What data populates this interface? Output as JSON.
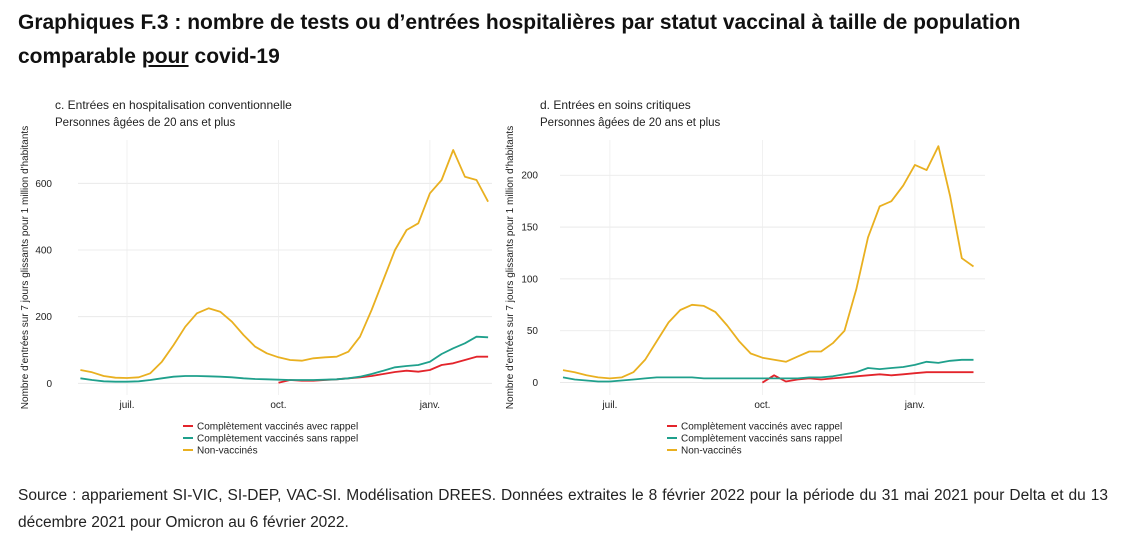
{
  "header": {
    "title_start": "Graphiques F.3 : nombre de tests ou d’entrées hospitalières par statut vaccinal à taille de population comparable",
    "title_underlined": "pour",
    "title_end": "covid-19"
  },
  "chart_data": [
    {
      "type": "line",
      "title": "c. Entrées en hospitalisation conventionnelle",
      "subtitle": "Personnes âgées de 20 ans et plus",
      "y_label": "Nombre d'entrées sur 7 jours glissants pour 1 million d'habitants",
      "categories": [
        null,
        null,
        null,
        null,
        "juil.",
        null,
        null,
        null,
        null,
        null,
        null,
        null,
        null,
        null,
        null,
        null,
        null,
        "oct.",
        null,
        null,
        null,
        null,
        null,
        null,
        null,
        null,
        null,
        null,
        null,
        null,
        "janv.",
        null,
        null,
        null,
        null,
        null
      ],
      "series": [
        {
          "name": "Complètement vaccinés avec rappel",
          "color": "#e3242b",
          "values": [
            null,
            null,
            null,
            null,
            null,
            null,
            null,
            null,
            null,
            null,
            null,
            null,
            null,
            null,
            null,
            null,
            null,
            2,
            10,
            8,
            8,
            10,
            12,
            15,
            18,
            22,
            28,
            34,
            38,
            35,
            40,
            55,
            60,
            70,
            80,
            80
          ]
        },
        {
          "name": "Complètement vaccinés sans rappel",
          "color": "#1fa08c",
          "values": [
            15,
            10,
            6,
            5,
            5,
            6,
            10,
            15,
            20,
            22,
            22,
            21,
            20,
            18,
            15,
            13,
            12,
            11,
            10,
            10,
            10,
            11,
            12,
            15,
            20,
            28,
            38,
            48,
            52,
            55,
            65,
            88,
            105,
            120,
            140,
            138
          ]
        },
        {
          "name": "Non-vaccinés",
          "color": "#e9b020",
          "values": [
            40,
            33,
            22,
            17,
            16,
            18,
            30,
            65,
            115,
            170,
            210,
            225,
            215,
            185,
            145,
            110,
            90,
            78,
            70,
            68,
            75,
            78,
            80,
            95,
            140,
            220,
            310,
            400,
            460,
            480,
            570,
            610,
            700,
            620,
            610,
            545
          ]
        }
      ],
      "ylim": [
        -35,
        730
      ],
      "yticks": [
        0,
        200,
        400,
        600
      ],
      "grid": true
    },
    {
      "type": "line",
      "title": "d. Entrées en soins critiques",
      "subtitle": "Personnes âgées de 20 ans et plus",
      "y_label": "Nombre d'entrées sur 7 jours glissants pour 1 million d'habitants",
      "categories": [
        null,
        null,
        null,
        null,
        "juil.",
        null,
        null,
        null,
        null,
        null,
        null,
        null,
        null,
        null,
        null,
        null,
        null,
        "oct.",
        null,
        null,
        null,
        null,
        null,
        null,
        null,
        null,
        null,
        null,
        null,
        null,
        "janv.",
        null,
        null,
        null,
        null,
        null
      ],
      "series": [
        {
          "name": "Complètement vaccinés avec rappel",
          "color": "#e3242b",
          "values": [
            null,
            null,
            null,
            null,
            null,
            null,
            null,
            null,
            null,
            null,
            null,
            null,
            null,
            null,
            null,
            null,
            null,
            0,
            7,
            1,
            3,
            4,
            3,
            4,
            5,
            6,
            7,
            8,
            7,
            8,
            9,
            10,
            10,
            10,
            10,
            10
          ]
        },
        {
          "name": "Complètement vaccinés sans rappel",
          "color": "#1fa08c",
          "values": [
            5,
            3,
            2,
            1,
            1,
            2,
            3,
            4,
            5,
            5,
            5,
            5,
            4,
            4,
            4,
            4,
            4,
            4,
            4,
            4,
            4,
            5,
            5,
            6,
            8,
            10,
            14,
            13,
            14,
            15,
            17,
            20,
            19,
            21,
            22,
            22
          ]
        },
        {
          "name": "Non-vaccinés",
          "color": "#e9b020",
          "values": [
            12,
            10,
            7,
            5,
            4,
            5,
            10,
            22,
            40,
            58,
            70,
            75,
            74,
            68,
            55,
            40,
            28,
            24,
            22,
            20,
            25,
            30,
            30,
            38,
            50,
            90,
            140,
            170,
            175,
            190,
            210,
            205,
            228,
            180,
            120,
            112
          ]
        }
      ],
      "ylim": [
        -12,
        234
      ],
      "yticks": [
        0,
        50,
        100,
        150,
        200
      ],
      "grid": true
    }
  ],
  "source": "Source : appariement SI-VIC, SI-DEP, VAC-SI. Modélisation DREES. Données extraites le 8 février 2022 pour la période du 31 mai 2021 pour Delta et du 13 décembre 2021 pour Omicron au 6 février 2022."
}
